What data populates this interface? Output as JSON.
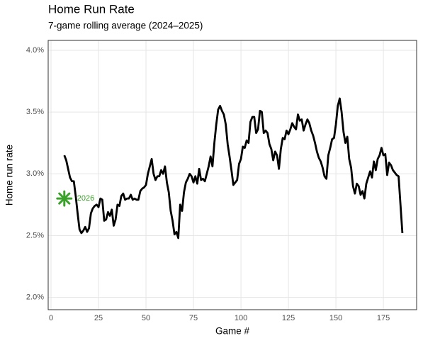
{
  "chart_data": {
    "type": "line",
    "title": "Home Run Rate",
    "subtitle": "7-game rolling average (2024–2025)",
    "x_label": "Game #",
    "y_label": "Home run rate",
    "xlim": [
      -1.5,
      192.5
    ],
    "ylim": [
      1.9,
      4.08
    ],
    "xticks": [
      0,
      25,
      50,
      75,
      100,
      125,
      150,
      175
    ],
    "yticks": [
      {
        "value": 2.0,
        "label": "2.0%"
      },
      {
        "value": 2.5,
        "label": "2.5%"
      },
      {
        "value": 3.0,
        "label": "3.0%"
      },
      {
        "value": 3.5,
        "label": "3.5%"
      },
      {
        "value": 4.0,
        "label": "4.0%"
      }
    ],
    "grid": true,
    "x": [
      7,
      8,
      9,
      10,
      11,
      12,
      13,
      14,
      15,
      16,
      17,
      18,
      19,
      20,
      21,
      22,
      23,
      24,
      25,
      26,
      27,
      28,
      29,
      30,
      31,
      32,
      33,
      34,
      35,
      36,
      37,
      38,
      39,
      40,
      41,
      42,
      43,
      44,
      45,
      46,
      47,
      48,
      49,
      50,
      51,
      52,
      53,
      54,
      55,
      56,
      57,
      58,
      59,
      60,
      61,
      62,
      63,
      64,
      65,
      66,
      67,
      68,
      69,
      70,
      71,
      72,
      73,
      74,
      75,
      76,
      77,
      78,
      79,
      80,
      81,
      82,
      83,
      84,
      85,
      86,
      87,
      88,
      89,
      90,
      91,
      92,
      93,
      94,
      95,
      96,
      97,
      98,
      99,
      100,
      101,
      102,
      103,
      104,
      105,
      106,
      107,
      108,
      109,
      110,
      111,
      112,
      113,
      114,
      115,
      116,
      117,
      118,
      119,
      120,
      121,
      122,
      123,
      124,
      125,
      126,
      127,
      128,
      129,
      130,
      131,
      132,
      133,
      134,
      135,
      136,
      137,
      138,
      139,
      140,
      141,
      142,
      143,
      144,
      145,
      146,
      147,
      148,
      149,
      150,
      151,
      152,
      153,
      154,
      155,
      156,
      157,
      158,
      159,
      160,
      161,
      162,
      163,
      164,
      165,
      166,
      167,
      168,
      169,
      170,
      171,
      172,
      173,
      174,
      175,
      176,
      177,
      178,
      179,
      180,
      181,
      182,
      183,
      184,
      185
    ],
    "series": [
      {
        "color": "#000000",
        "values": [
          3.15,
          3.11,
          3.04,
          2.97,
          2.94,
          2.94,
          2.82,
          2.68,
          2.55,
          2.52,
          2.54,
          2.57,
          2.53,
          2.56,
          2.68,
          2.72,
          2.74,
          2.75,
          2.73,
          2.8,
          2.79,
          2.62,
          2.63,
          2.69,
          2.66,
          2.71,
          2.58,
          2.63,
          2.75,
          2.74,
          2.82,
          2.84,
          2.79,
          2.8,
          2.8,
          2.83,
          2.79,
          2.8,
          2.79,
          2.79,
          2.86,
          2.88,
          2.89,
          2.91,
          3.0,
          3.06,
          3.12,
          3.0,
          2.95,
          2.98,
          2.98,
          3.03,
          3.0,
          3.06,
          2.93,
          2.85,
          2.7,
          2.62,
          2.51,
          2.53,
          2.48,
          2.75,
          2.7,
          2.85,
          2.93,
          2.96,
          3.0,
          2.98,
          2.93,
          2.98,
          2.92,
          3.04,
          2.95,
          2.96,
          2.94,
          3.0,
          3.06,
          3.14,
          3.06,
          3.25,
          3.4,
          3.52,
          3.55,
          3.51,
          3.48,
          3.4,
          3.24,
          3.14,
          3.03,
          2.91,
          2.93,
          2.95,
          3.08,
          3.12,
          3.22,
          3.21,
          3.27,
          3.25,
          3.42,
          3.46,
          3.46,
          3.33,
          3.36,
          3.51,
          3.5,
          3.33,
          3.35,
          3.33,
          3.24,
          3.2,
          3.11,
          3.18,
          3.15,
          3.04,
          3.2,
          3.29,
          3.28,
          3.35,
          3.32,
          3.36,
          3.41,
          3.38,
          3.36,
          3.48,
          3.43,
          3.44,
          3.35,
          3.4,
          3.44,
          3.41,
          3.35,
          3.31,
          3.25,
          3.18,
          3.13,
          3.1,
          3.05,
          2.98,
          2.96,
          3.15,
          3.21,
          3.28,
          3.29,
          3.4,
          3.55,
          3.61,
          3.5,
          3.34,
          3.25,
          3.3,
          3.12,
          3.05,
          2.9,
          2.84,
          2.92,
          2.9,
          2.83,
          2.86,
          2.8,
          2.92,
          2.97,
          3.02,
          2.97,
          3.1,
          3.03,
          3.12,
          3.15,
          3.21,
          3.15,
          3.16,
          2.99,
          3.09,
          3.07,
          3.03,
          3.01,
          2.99,
          2.98,
          2.75,
          2.52
        ]
      }
    ],
    "highlight": {
      "label": "2026",
      "x": 7,
      "y": 2.8,
      "color": "#3aa12a"
    }
  }
}
